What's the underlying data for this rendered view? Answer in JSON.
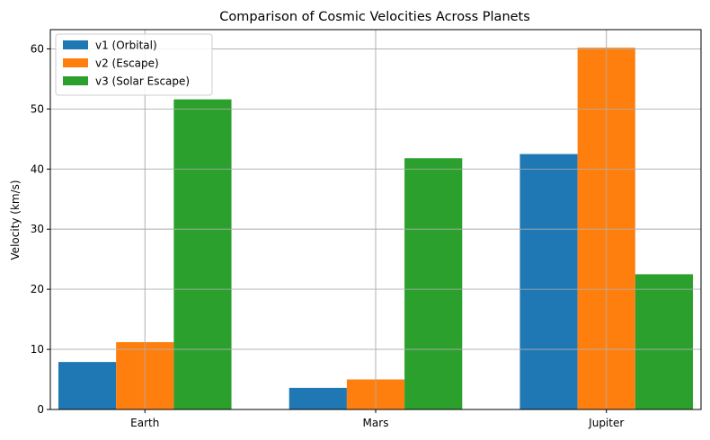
{
  "chart_data": {
    "type": "bar",
    "title": "Comparison of Cosmic Velocities Across Planets",
    "xlabel": "",
    "ylabel": "Velocity (km/s)",
    "categories": [
      "Earth",
      "Mars",
      "Jupiter"
    ],
    "series": [
      {
        "name": "v1 (Orbital)",
        "color": "#1f77b4",
        "values": [
          7.9,
          3.6,
          42.5
        ]
      },
      {
        "name": "v2 (Escape)",
        "color": "#ff7f0e",
        "values": [
          11.2,
          5.0,
          60.2
        ]
      },
      {
        "name": "v3 (Solar Escape)",
        "color": "#2ca02c",
        "values": [
          51.6,
          41.8,
          22.5
        ]
      }
    ],
    "ylim": [
      0,
      63.2
    ],
    "yticks": [
      0,
      10,
      20,
      30,
      40,
      50,
      60
    ],
    "grid": true,
    "legend_position": "top-left"
  }
}
